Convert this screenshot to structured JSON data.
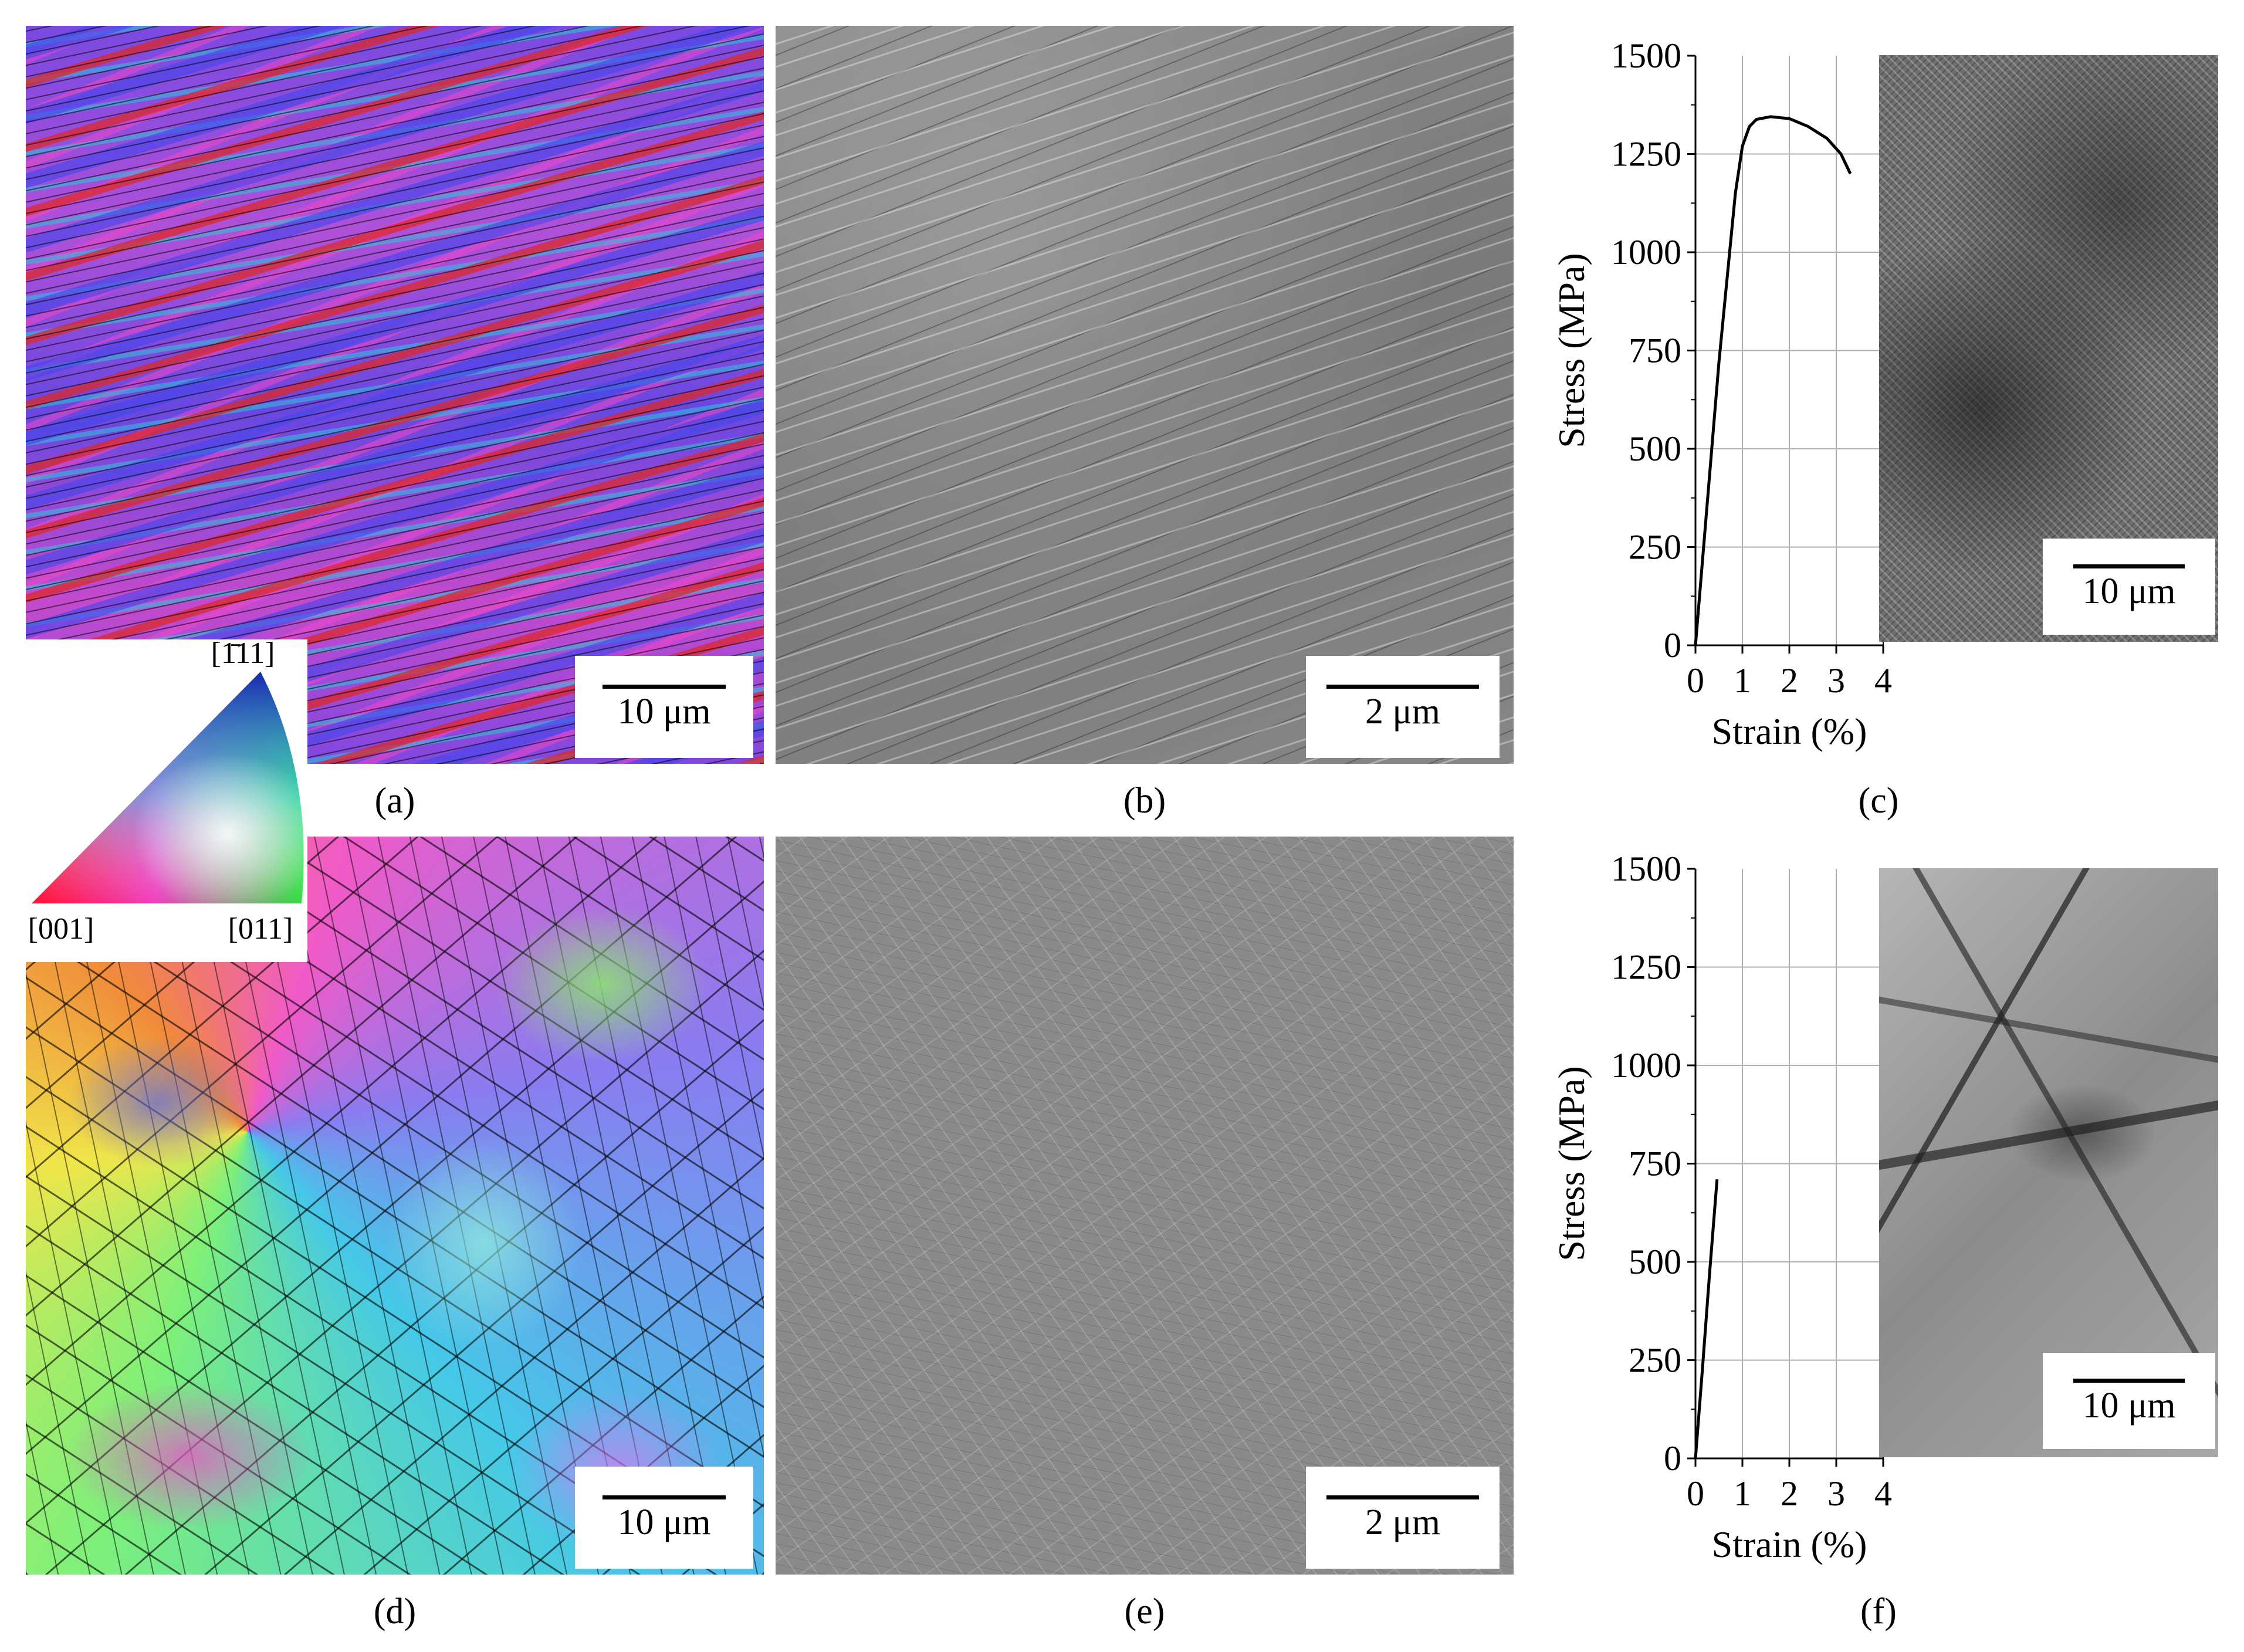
{
  "figure": {
    "panel_labels": [
      "(a)",
      "(b)",
      "(c)",
      "(d)",
      "(e)",
      "(f)"
    ],
    "scale_bars": {
      "a": "10 μm",
      "b": "2 μm",
      "c": "10 μm",
      "d": "10 μm",
      "e": "2 μm",
      "f": "10 μm"
    },
    "ipf_key": {
      "top": "[1̄11]",
      "left": "[001]",
      "right": "[011]"
    }
  },
  "chart_data": [
    {
      "type": "line",
      "panel": "c",
      "xlabel": "Strain (%)",
      "ylabel": "Stress (MPa)",
      "xlim": [
        0,
        4
      ],
      "ylim": [
        0,
        1500
      ],
      "x_ticks": [
        "0",
        "1",
        "2",
        "3",
        "4"
      ],
      "y_ticks": [
        "0",
        "250",
        "500",
        "750",
        "1000",
        "1250",
        "1500"
      ],
      "grid": true,
      "x": [
        0,
        0.5,
        0.85,
        1.0,
        1.15,
        1.3,
        1.6,
        2.0,
        2.4,
        2.8,
        3.1,
        3.3
      ],
      "y": [
        0,
        720,
        1150,
        1270,
        1320,
        1338,
        1345,
        1340,
        1320,
        1290,
        1250,
        1200
      ]
    },
    {
      "type": "line",
      "panel": "f",
      "xlabel": "Strain (%)",
      "ylabel": "Stress (MPa)",
      "xlim": [
        0,
        4
      ],
      "ylim": [
        0,
        1500
      ],
      "x_ticks": [
        "0",
        "1",
        "2",
        "3",
        "4"
      ],
      "y_ticks": [
        "0",
        "250",
        "500",
        "750",
        "1000",
        "1250",
        "1500"
      ],
      "grid": true,
      "x": [
        0,
        0.15,
        0.3,
        0.42,
        0.46
      ],
      "y": [
        0,
        230,
        470,
        650,
        710
      ]
    }
  ]
}
